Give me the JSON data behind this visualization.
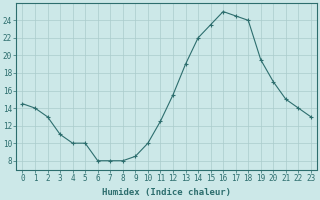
{
  "x": [
    0,
    1,
    2,
    3,
    4,
    5,
    6,
    7,
    8,
    9,
    10,
    11,
    12,
    13,
    14,
    15,
    16,
    17,
    18,
    19,
    20,
    21,
    22,
    23
  ],
  "y": [
    14.5,
    14,
    13,
    11,
    10,
    10,
    8,
    8,
    8,
    8.5,
    10,
    12.5,
    15.5,
    19,
    22,
    23.5,
    25,
    24.5,
    24,
    19.5,
    17,
    15,
    14,
    13
  ],
  "line_color": "#2d6e6e",
  "marker": "+",
  "marker_size": 3,
  "marker_lw": 0.8,
  "bg_color": "#cce8e8",
  "grid_color": "#aacccc",
  "xlabel": "Humidex (Indice chaleur)",
  "xlim": [
    -0.5,
    23.5
  ],
  "ylim": [
    7,
    26
  ],
  "yticks": [
    8,
    10,
    12,
    14,
    16,
    18,
    20,
    22,
    24
  ],
  "xticks": [
    0,
    1,
    2,
    3,
    4,
    5,
    6,
    7,
    8,
    9,
    10,
    11,
    12,
    13,
    14,
    15,
    16,
    17,
    18,
    19,
    20,
    21,
    22,
    23
  ],
  "tick_color": "#2d6e6e",
  "label_fontsize": 5.5,
  "xlabel_fontsize": 6.5,
  "axis_color": "#2d6e6e",
  "line_width": 0.8
}
